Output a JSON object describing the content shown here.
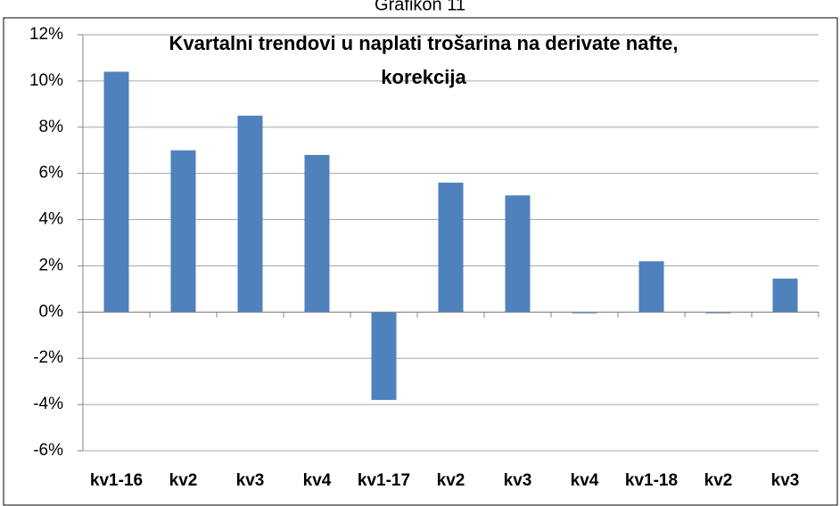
{
  "header": "Grafikon 11",
  "chart_data": {
    "type": "bar",
    "title": [
      "Kvartalni trendovi u naplati trošarina na derivate nafte,",
      "korekcija"
    ],
    "categories": [
      "kv1-16",
      "kv2",
      "kv3",
      "kv4",
      "kv1-17",
      "kv2",
      "kv3",
      "kv4",
      "kv1-18",
      "kv2",
      "kv3"
    ],
    "values": [
      10.4,
      7.0,
      8.5,
      6.8,
      -3.8,
      5.6,
      5.05,
      -0.05,
      2.2,
      -0.05,
      1.45
    ],
    "color": "#4f81bd",
    "ylim": [
      -6,
      12
    ],
    "yticks": [
      {
        "value": -6,
        "label": "-6%"
      },
      {
        "value": -4,
        "label": "-4%"
      },
      {
        "value": -2,
        "label": "-2%"
      },
      {
        "value": 0,
        "label": "0%"
      },
      {
        "value": 2,
        "label": "2%"
      },
      {
        "value": 4,
        "label": "4%"
      },
      {
        "value": 6,
        "label": "6%"
      },
      {
        "value": 8,
        "label": "8%"
      },
      {
        "value": 10,
        "label": "10%"
      },
      {
        "value": 12,
        "label": "12%"
      }
    ],
    "grid": true
  }
}
